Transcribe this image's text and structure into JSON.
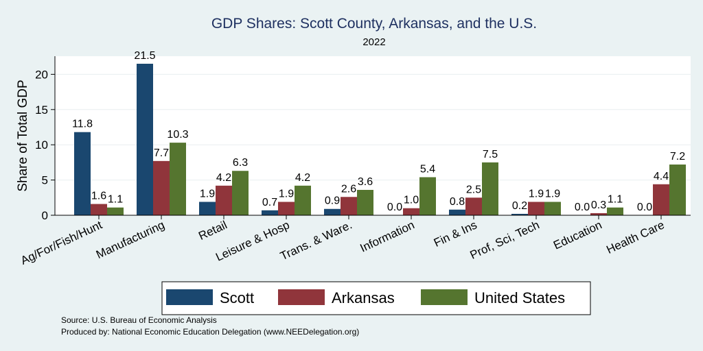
{
  "chart_data": {
    "type": "bar",
    "title": "GDP Shares: Scott County, Arkansas, and the U.S.",
    "subtitle": "2022",
    "xlabel": "",
    "ylabel": "Share of Total GDP",
    "ylim": [
      0,
      23
    ],
    "yticks": [
      0,
      5,
      10,
      15,
      20
    ],
    "grid": true,
    "legend_position": "bottom",
    "categories": [
      "Ag/For/Fish/Hunt",
      "Manufacturing",
      "Retail",
      "Leisure & Hosp",
      "Trans. & Ware.",
      "Information",
      "Fin & Ins",
      "Prof, Sci, Tech",
      "Education",
      "Health Care"
    ],
    "series": [
      {
        "name": "Scott",
        "color": "#1a476f",
        "values": [
          11.8,
          21.5,
          1.9,
          0.7,
          0.9,
          0.0,
          0.8,
          0.2,
          0.0,
          0.0
        ]
      },
      {
        "name": "Arkansas",
        "color": "#90353b",
        "values": [
          1.6,
          7.7,
          4.2,
          1.9,
          2.6,
          1.0,
          2.5,
          1.9,
          0.3,
          4.4
        ]
      },
      {
        "name": "United States",
        "color": "#55752f",
        "values": [
          1.1,
          10.3,
          6.3,
          4.2,
          3.6,
          5.4,
          7.5,
          1.9,
          1.1,
          7.2
        ]
      }
    ]
  },
  "notes": {
    "source": "Source: U.S. Bureau of Economic Analysis",
    "produced": "Produced by: National Economic Education Delegation (www.NEEDelegation.org)"
  }
}
